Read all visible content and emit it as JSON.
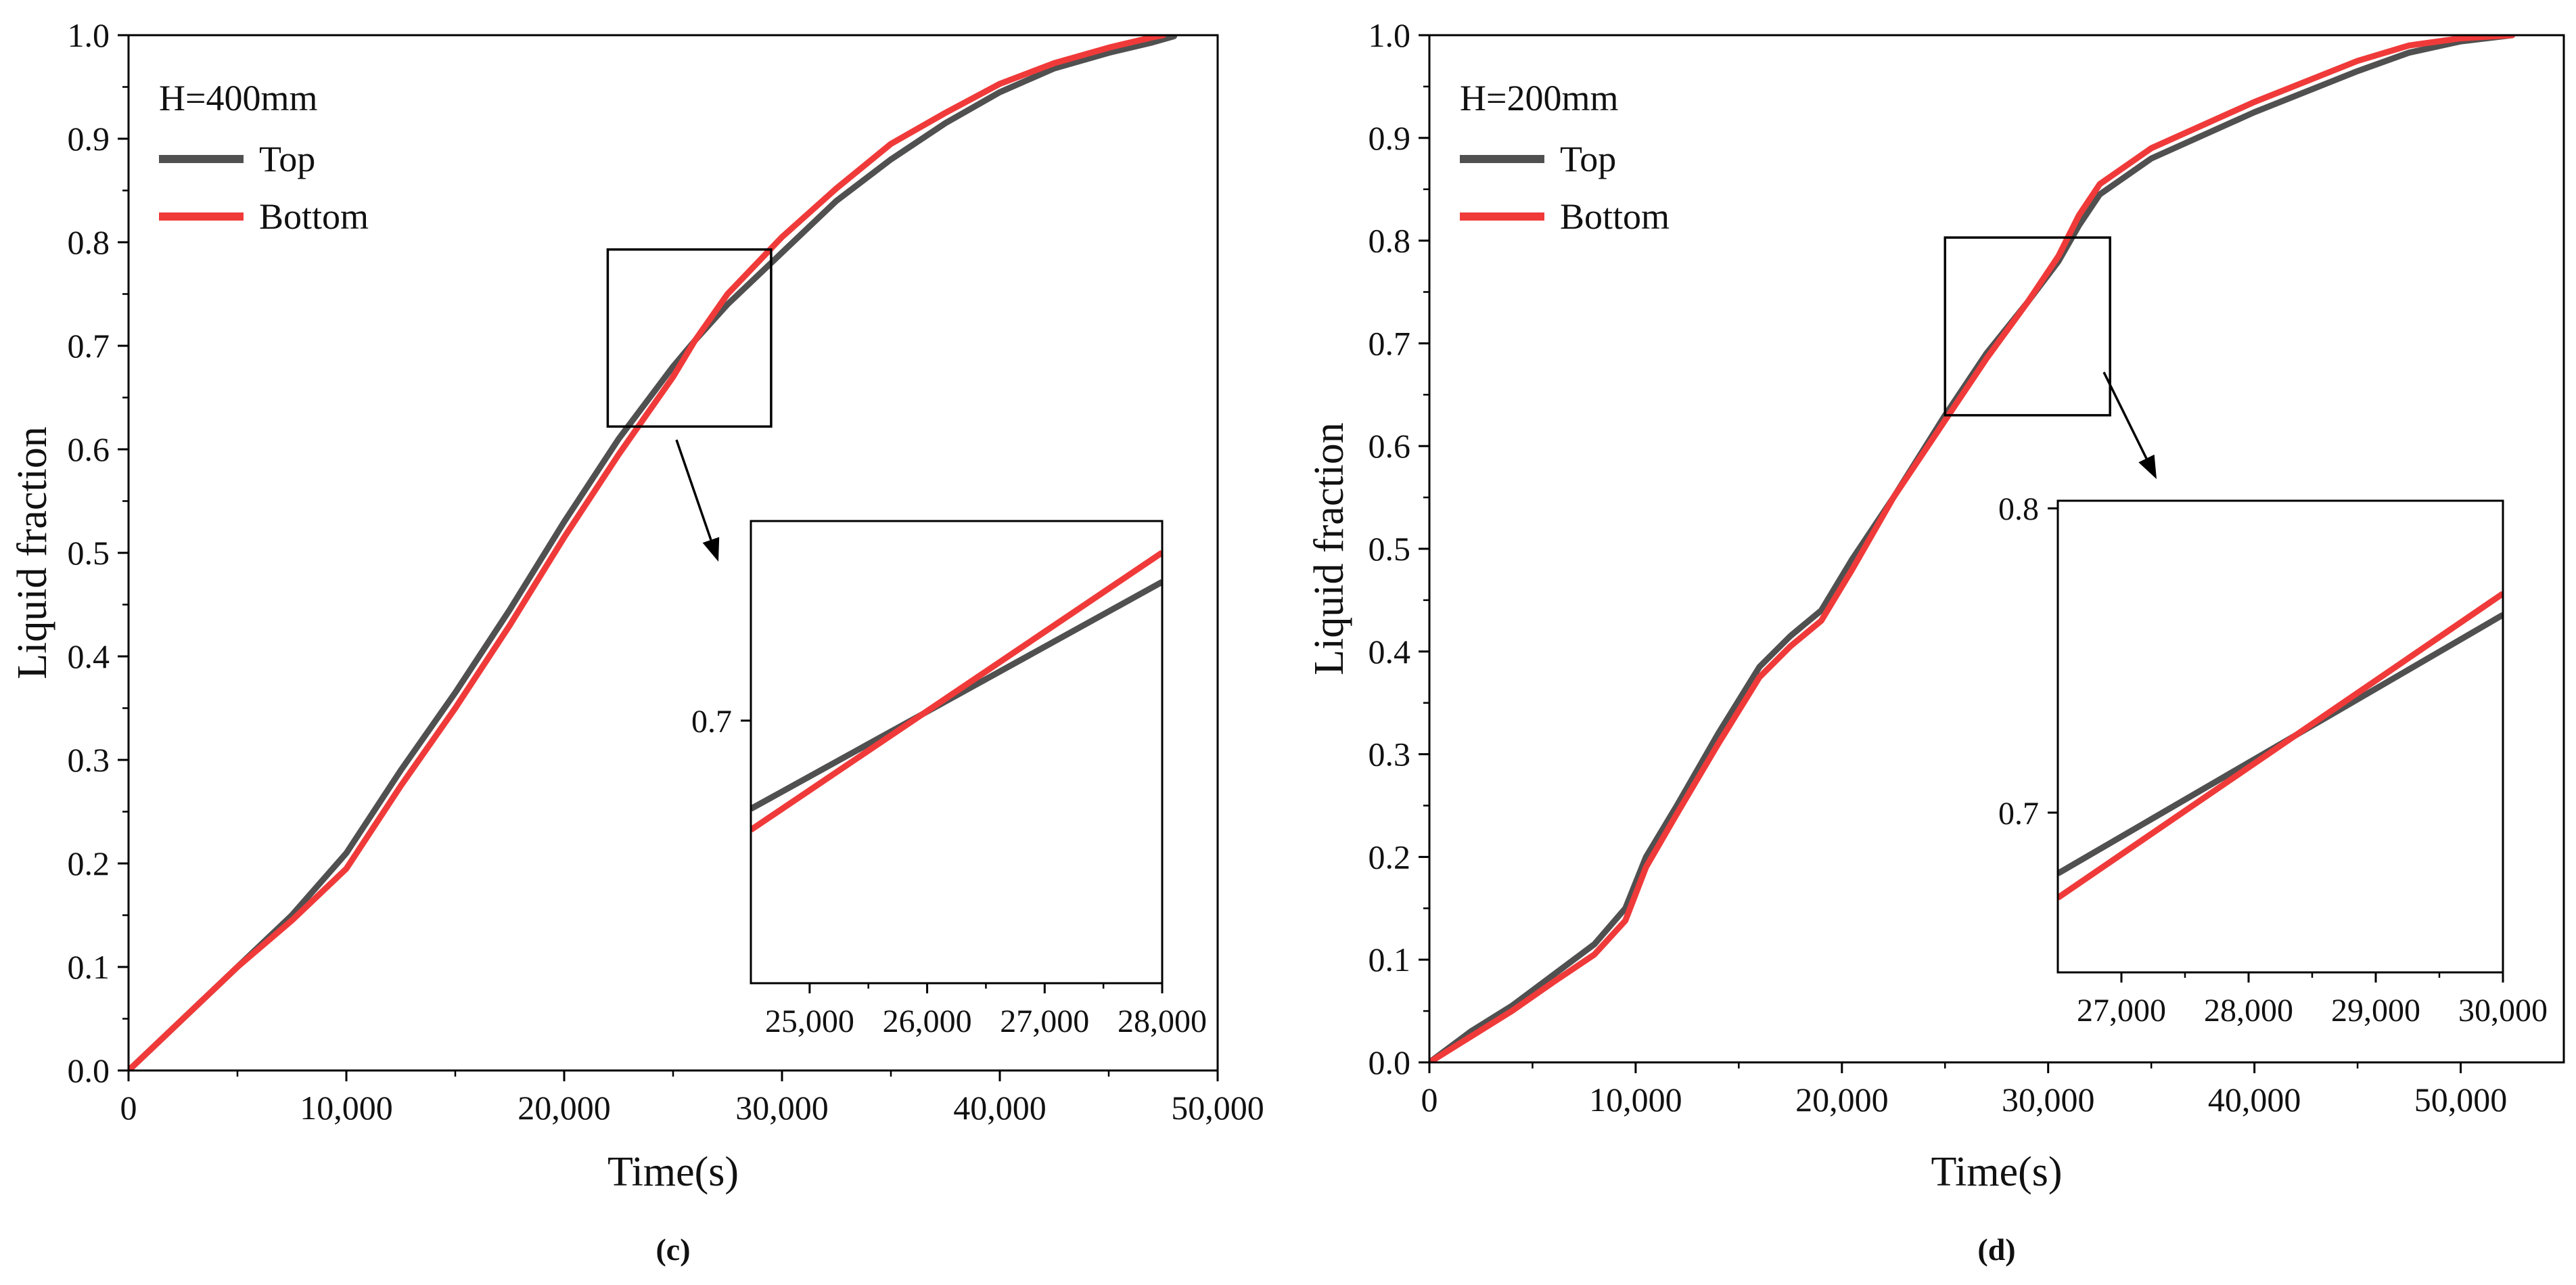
{
  "colors": {
    "top": "#505050",
    "bottom": "#f03a3a",
    "axis": "#000000"
  },
  "chart_data": [
    {
      "type": "line",
      "panel_label": "(c)",
      "legend_title": "H=400mm",
      "legend_position": "top-left",
      "xlabel": "Time(s)",
      "ylabel": "Liquid fraction",
      "xlim": [
        0,
        50000
      ],
      "ylim": [
        0,
        1.0
      ],
      "x_ticks": [
        0,
        10000,
        20000,
        30000,
        40000,
        50000
      ],
      "x_tick_labels": [
        "0",
        "10,000",
        "20,000",
        "30,000",
        "40,000",
        "50,000"
      ],
      "y_ticks": [
        0.0,
        0.1,
        0.2,
        0.3,
        0.4,
        0.5,
        0.6,
        0.7,
        0.8,
        0.9,
        1.0
      ],
      "y_tick_labels": [
        "0.0",
        "0.1",
        "0.2",
        "0.3",
        "0.4",
        "0.5",
        "0.6",
        "0.7",
        "0.8",
        "0.9",
        "1.0"
      ],
      "series": [
        {
          "name": "Top",
          "color_key": "top",
          "x": [
            0,
            2500,
            5000,
            7500,
            10000,
            12500,
            15000,
            17500,
            20000,
            22500,
            25000,
            26000,
            27500,
            30000,
            32500,
            35000,
            37500,
            40000,
            42500,
            45000,
            47000,
            48000
          ],
          "y": [
            0,
            0.05,
            0.1,
            0.15,
            0.21,
            0.29,
            0.365,
            0.445,
            0.53,
            0.61,
            0.68,
            0.705,
            0.74,
            0.79,
            0.84,
            0.88,
            0.915,
            0.945,
            0.968,
            0.983,
            0.993,
            0.999
          ]
        },
        {
          "name": "Bottom",
          "color_key": "bottom",
          "x": [
            0,
            2500,
            5000,
            7500,
            10000,
            12500,
            15000,
            17500,
            20000,
            22500,
            25000,
            26000,
            27500,
            30000,
            32500,
            35000,
            37500,
            40000,
            42500,
            45000,
            47000,
            47500
          ],
          "y": [
            0,
            0.05,
            0.1,
            0.145,
            0.195,
            0.275,
            0.35,
            0.43,
            0.515,
            0.595,
            0.67,
            0.705,
            0.75,
            0.805,
            0.852,
            0.895,
            0.925,
            0.953,
            0.973,
            0.988,
            0.998,
            1.0
          ]
        }
      ],
      "inset": {
        "xlim": [
          24500,
          28000
        ],
        "ylim": [
          0.6375,
          0.7475
        ],
        "x_ticks": [
          25000,
          26000,
          27000,
          28000
        ],
        "x_tick_labels": [
          "25,000",
          "26,000",
          "27,000",
          "28,000"
        ],
        "y_ticks": [
          0.7
        ],
        "y_tick_labels": [
          "0.7"
        ],
        "series": [
          {
            "name": "Top",
            "color_key": "top",
            "x": [
              24500,
              28000
            ],
            "y": [
              0.679,
              0.733
            ]
          },
          {
            "name": "Bottom",
            "color_key": "bottom",
            "x": [
              24500,
              28000
            ],
            "y": [
              0.674,
              0.74
            ]
          }
        ],
        "zoom_box": {
          "x": [
            22000,
            29500
          ],
          "y": [
            0.622,
            0.793
          ]
        }
      }
    },
    {
      "type": "line",
      "panel_label": "(d)",
      "legend_title": "H=200mm",
      "legend_position": "top-left",
      "xlabel": "Time(s)",
      "ylabel": "Liquid fraction",
      "xlim": [
        0,
        55000
      ],
      "ylim": [
        0,
        1.0
      ],
      "x_ticks": [
        0,
        10000,
        20000,
        30000,
        40000,
        50000
      ],
      "x_tick_labels": [
        "0",
        "10,000",
        "20,000",
        "30,000",
        "40,000",
        "50,000"
      ],
      "y_ticks": [
        0.0,
        0.1,
        0.2,
        0.3,
        0.4,
        0.5,
        0.6,
        0.7,
        0.8,
        0.9,
        1.0
      ],
      "y_tick_labels": [
        "0.0",
        "0.1",
        "0.2",
        "0.3",
        "0.4",
        "0.5",
        "0.6",
        "0.7",
        "0.8",
        "0.9",
        "1.0"
      ],
      "series": [
        {
          "name": "Top",
          "color_key": "top",
          "x": [
            0,
            2000,
            4000,
            6000,
            8000,
            9500,
            10500,
            12000,
            14000,
            16000,
            17500,
            19000,
            20500,
            22500,
            25000,
            27000,
            29000,
            30500,
            31500,
            32500,
            35000,
            40000,
            45000,
            47500,
            50000,
            52500
          ],
          "y": [
            0,
            0.03,
            0.055,
            0.085,
            0.115,
            0.15,
            0.2,
            0.25,
            0.32,
            0.385,
            0.415,
            0.44,
            0.49,
            0.55,
            0.63,
            0.69,
            0.74,
            0.78,
            0.815,
            0.845,
            0.88,
            0.925,
            0.965,
            0.983,
            0.994,
            1.0
          ]
        },
        {
          "name": "Bottom",
          "color_key": "bottom",
          "x": [
            0,
            2000,
            4000,
            6000,
            8000,
            9500,
            10500,
            12000,
            14000,
            16000,
            17500,
            19000,
            20500,
            22500,
            25000,
            27000,
            29000,
            30500,
            31500,
            32500,
            35000,
            40000,
            45000,
            47500,
            50000,
            52500
          ],
          "y": [
            0,
            0.025,
            0.05,
            0.078,
            0.105,
            0.138,
            0.19,
            0.242,
            0.31,
            0.375,
            0.405,
            0.43,
            0.48,
            0.55,
            0.625,
            0.685,
            0.74,
            0.785,
            0.825,
            0.855,
            0.89,
            0.935,
            0.975,
            0.99,
            0.997,
            1.0
          ]
        }
      ],
      "inset": {
        "xlim": [
          26500,
          30000
        ],
        "ylim": [
          0.6475,
          0.8025
        ],
        "x_ticks": [
          27000,
          28000,
          29000,
          30000
        ],
        "x_tick_labels": [
          "27,000",
          "28,000",
          "29,000",
          "30,000"
        ],
        "y_ticks": [
          0.7,
          0.8
        ],
        "y_tick_labels": [
          "0.7",
          "0.8"
        ],
        "series": [
          {
            "name": "Top",
            "color_key": "top",
            "x": [
              26500,
              30000
            ],
            "y": [
              0.68,
              0.765
            ]
          },
          {
            "name": "Bottom",
            "color_key": "bottom",
            "x": [
              26500,
              30000
            ],
            "y": [
              0.672,
              0.772
            ]
          }
        ],
        "zoom_box": {
          "x": [
            25000,
            33000
          ],
          "y": [
            0.63,
            0.803
          ]
        }
      }
    }
  ]
}
